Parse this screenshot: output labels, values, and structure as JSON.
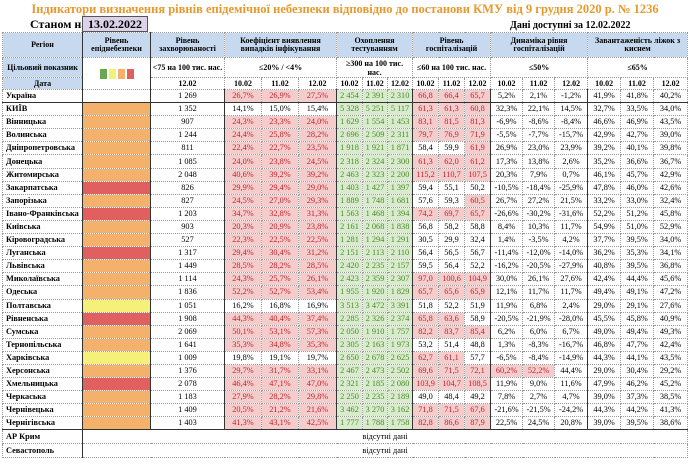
{
  "title": "Індикатори визначення рівнів епідемічної небезпеки відповідно до постанови КМУ від 9 грудня 2020 р. № 1236",
  "as_of_label": "Станом на",
  "as_of_date": "13.02.2022",
  "available": "Дані доступні за  12.02.2022",
  "headers": {
    "region": "Регіон",
    "level": "Рівень епіднебезпеки",
    "incidence": "Рівень захворюваності",
    "coef": "Коефіцієнт виявлення випадків інфікування",
    "tests": "Охоплення тестуванням",
    "hosp": "Рівень госпіталізацій",
    "dyn": "Динаміка рівня госпіталізацій",
    "oxy": "Завантаженість ліжок з киснем",
    "target_label": "Цільовий показник",
    "date_label": "Дата",
    "t_incidence": "<75 на 100 тис. нас.",
    "t_coef": "≤20% / <4%",
    "t_tests": "≥300 на 100 тис. нас.",
    "t_hosp": "≤60 на 100 тис. нас.",
    "t_dyn": "≤50%",
    "t_oxy": "≤65%",
    "d_inc": "12.02",
    "d1": "10.02",
    "d2": "11.02",
    "d3": "12.02"
  },
  "level_colors": {
    "green": "#6aa84f",
    "yellow": "#f4f07a",
    "orange": "#f4b16b",
    "red": "#e06060"
  },
  "legend_swatches": [
    "#6aa84f",
    "#f4f07a",
    "#f4b16b",
    "#e06060"
  ],
  "rows": [
    [
      "Україна",
      "",
      "1 269",
      [
        "26,7%",
        "26,9%",
        "27,5%"
      ],
      [
        "2 454",
        "2 391",
        "2 310"
      ],
      [
        "66,8",
        "66,4",
        "65,7"
      ],
      [
        "5,2%",
        "2,1%",
        "-1,2%"
      ],
      [
        "41,9%",
        "41,8%",
        "40,2%"
      ]
    ],
    [
      "КИЇВ",
      "orange",
      "1 352",
      [
        "14,1%",
        "15,0%",
        "15,4%"
      ],
      [
        "5 328",
        "5 251",
        "5 117"
      ],
      [
        "61,3",
        "61,3",
        "60,8"
      ],
      [
        "32,3%",
        "22,1%",
        "14,5%"
      ],
      [
        "32,7%",
        "33,5%",
        "34,0%"
      ]
    ],
    [
      "Вінницька",
      "orange",
      "907",
      [
        "24,3%",
        "23,3%",
        "24,0%"
      ],
      [
        "1 629",
        "1 554",
        "1 453"
      ],
      [
        "83,1",
        "81,5",
        "81,3"
      ],
      [
        "-6,9%",
        "-8,6%",
        "-8,4%"
      ],
      [
        "46,6%",
        "46,9%",
        "43,5%"
      ]
    ],
    [
      "Волинська",
      "orange",
      "1 244",
      [
        "24,4%",
        "25,8%",
        "28,2%"
      ],
      [
        "2 696",
        "2 509",
        "2 311"
      ],
      [
        "79,7",
        "76,9",
        "71,9"
      ],
      [
        "-5,5%",
        "-7,7%",
        "-15,7%"
      ],
      [
        "42,9%",
        "42,7%",
        "39,0%"
      ]
    ],
    [
      "Дніпропетровська",
      "orange",
      "811",
      [
        "22,4%",
        "22,7%",
        "23,5%"
      ],
      [
        "1 918",
        "1 921",
        "1 871"
      ],
      [
        "58,4",
        "59,9",
        "61,9"
      ],
      [
        "26,9%",
        "23,0%",
        "23,9%"
      ],
      [
        "39,2%",
        "40,1%",
        "39,8%"
      ]
    ],
    [
      "Донецька",
      "orange",
      "1 085",
      [
        "24,0%",
        "23,8%",
        "24,5%"
      ],
      [
        "2 318",
        "2 324",
        "2 300"
      ],
      [
        "61,3",
        "62,0",
        "61,2"
      ],
      [
        "17,3%",
        "13,8%",
        "2,6%"
      ],
      [
        "35,2%",
        "36,6%",
        "36,7%"
      ]
    ],
    [
      "Житомирська",
      "orange",
      "2 048",
      [
        "40,6%",
        "39,2%",
        "39,2%"
      ],
      [
        "2 463",
        "2 323",
        "2 200"
      ],
      [
        "115,2",
        "110,7",
        "107,5"
      ],
      [
        "20,3%",
        "7,9%",
        "0,7%"
      ],
      [
        "46,1%",
        "45,7%",
        "42,9%"
      ]
    ],
    [
      "Закарпатська",
      "red",
      "826",
      [
        "29,9%",
        "29,4%",
        "29,0%"
      ],
      [
        "1 403",
        "1 427",
        "1 397"
      ],
      [
        "59,4",
        "55,1",
        "50,2"
      ],
      [
        "-10,5%",
        "-18,4%",
        "-25,9%"
      ],
      [
        "47,8%",
        "46,0%",
        "42,6%"
      ]
    ],
    [
      "Запорізька",
      "orange",
      "827",
      [
        "24,5%",
        "27,0%",
        "29,3%"
      ],
      [
        "1 889",
        "1 748",
        "1 681"
      ],
      [
        "57,6",
        "59,3",
        "60,5"
      ],
      [
        "26,7%",
        "27,2%",
        "21,5%"
      ],
      [
        "33,2%",
        "33,0%",
        "32,4%"
      ]
    ],
    [
      "Івано-Франківська",
      "red",
      "1 203",
      [
        "34,7%",
        "32,8%",
        "31,3%"
      ],
      [
        "1 563",
        "1 468",
        "1 394"
      ],
      [
        "74,2",
        "69,7",
        "65,7"
      ],
      [
        "-26,6%",
        "-30,2%",
        "-31,6%"
      ],
      [
        "52,2%",
        "51,2%",
        "45,8%"
      ]
    ],
    [
      "Київська",
      "orange",
      "903",
      [
        "20,3%",
        "20,9%",
        "23,8%"
      ],
      [
        "2 161",
        "2 068",
        "1 838"
      ],
      [
        "56,8",
        "58,2",
        "58,8"
      ],
      [
        "8,4%",
        "10,3%",
        "11,7%"
      ],
      [
        "54,9%",
        "51,0%",
        "52,9%"
      ]
    ],
    [
      "Кіровоградська",
      "orange",
      "527",
      [
        "22,3%",
        "22,5%",
        "22,5%"
      ],
      [
        "1 281",
        "1 294",
        "1 291"
      ],
      [
        "30,5",
        "29,9",
        "32,4"
      ],
      [
        "1,4%",
        "-3,5%",
        "4,2%"
      ],
      [
        "37,7%",
        "39,5%",
        "34,0%"
      ]
    ],
    [
      "Луганська",
      "red",
      "1 317",
      [
        "29,4%",
        "30,4%",
        "31,2%"
      ],
      [
        "2 151",
        "2 113",
        "2 110"
      ],
      [
        "56,4",
        "56,5",
        "56,7"
      ],
      [
        "-11,4%",
        "-12,0%",
        "-14,0%"
      ],
      [
        "36,2%",
        "35,3%",
        "34,1%"
      ]
    ],
    [
      "Львівська",
      "orange",
      "1 449",
      [
        "28,5%",
        "28,2%",
        "28,5%"
      ],
      [
        "2 420",
        "2 235",
        "2 157"
      ],
      [
        "59,5",
        "56,4",
        "52,2"
      ],
      [
        "-16,2%",
        "-20,5%",
        "-27,9%"
      ],
      [
        "40,8%",
        "39,5%",
        "36,8%"
      ]
    ],
    [
      "Миколаївська",
      "orange",
      "1 114",
      [
        "24,3%",
        "25,7%",
        "26,1%"
      ],
      [
        "2 423",
        "2 359",
        "2 307"
      ],
      [
        "97,0",
        "100,6",
        "104,9"
      ],
      [
        "30,0%",
        "26,1%",
        "27,6%"
      ],
      [
        "42,4%",
        "44,4%",
        "45,6%"
      ]
    ],
    [
      "Одеська",
      "orange",
      "1 836",
      [
        "52,2%",
        "52,7%",
        "53,4%"
      ],
      [
        "1 955",
        "1 920",
        "1 829"
      ],
      [
        "65,7",
        "65,6",
        "65,9"
      ],
      [
        "12,1%",
        "11,7%",
        "11,7%"
      ],
      [
        "49,4%",
        "49,1%",
        "47,2%"
      ]
    ],
    [
      "Полтавська",
      "yellow",
      "1 051",
      [
        "16,2%",
        "16,8%",
        "16,9%"
      ],
      [
        "3 513",
        "3 472",
        "3 391"
      ],
      [
        "51,8",
        "52,2",
        "51,9"
      ],
      [
        "11,9%",
        "6,8%",
        "2,4%"
      ],
      [
        "29,0%",
        "29,1%",
        "27,6%"
      ]
    ],
    [
      "Рівненська",
      "red",
      "1 908",
      [
        "44,3%",
        "40,4%",
        "37,4%"
      ],
      [
        "2 285",
        "2 326",
        "2 374"
      ],
      [
        "65,8",
        "63,6",
        "58,9"
      ],
      [
        "-20,5%",
        "-21,9%",
        "-28,0%"
      ],
      [
        "45,5%",
        "45,8%",
        "40,9%"
      ]
    ],
    [
      "Сумська",
      "orange",
      "2 069",
      [
        "50,1%",
        "53,1%",
        "57,3%"
      ],
      [
        "2 050",
        "1 910",
        "1 757"
      ],
      [
        "82,2",
        "83,7",
        "85,4"
      ],
      [
        "6,2%",
        "6,0%",
        "6,7%"
      ],
      [
        "49,0%",
        "49,4%",
        "49,3%"
      ]
    ],
    [
      "Тернопільська",
      "orange",
      "1 641",
      [
        "35,3%",
        "34,8%",
        "35,3%"
      ],
      [
        "2 305",
        "2 163",
        "1 973"
      ],
      [
        "53,2",
        "51,4",
        "48,8"
      ],
      [
        "1,3%",
        "-8,3%",
        "-16,7%"
      ],
      [
        "46,8%",
        "47,7%",
        "42,4%"
      ]
    ],
    [
      "Харківська",
      "yellow",
      "1 009",
      [
        "19,8%",
        "19,1%",
        "19,7%"
      ],
      [
        "2 650",
        "2 678",
        "2 625"
      ],
      [
        "62,7",
        "61,1",
        "57,7"
      ],
      [
        "-6,5%",
        "-8,4%",
        "-14,9%"
      ],
      [
        "44,3%",
        "44,1%",
        "43,5%"
      ]
    ],
    [
      "Херсонська",
      "orange",
      "1 376",
      [
        "29,7%",
        "31,7%",
        "33,1%"
      ],
      [
        "2 467",
        "2 473",
        "2 502"
      ],
      [
        "69,6",
        "71,5",
        "72,1"
      ],
      [
        "60,2%",
        "52,2%",
        "44,4%"
      ],
      [
        "29,0%",
        "30,4%",
        "29,2%"
      ]
    ],
    [
      "Хмельницька",
      "red",
      "2 078",
      [
        "46,4%",
        "47,1%",
        "47,0%"
      ],
      [
        "2 321",
        "2 185",
        "2 080"
      ],
      [
        "103,9",
        "104,7",
        "108,5"
      ],
      [
        "11,9%",
        "9,0%",
        "11,6%"
      ],
      [
        "47,9%",
        "46,2%",
        "45,2%"
      ]
    ],
    [
      "Черкаська",
      "orange",
      "1 183",
      [
        "27,9%",
        "28,2%",
        "29,8%"
      ],
      [
        "2 250",
        "2 235",
        "2 189"
      ],
      [
        "49,0",
        "48,4",
        "49,2"
      ],
      [
        "7,8%",
        "2,7%",
        "4,7%"
      ],
      [
        "39,0%",
        "37,3%",
        "38,5%"
      ]
    ],
    [
      "Чернівецька",
      "orange",
      "1 409",
      [
        "20,5%",
        "21,2%",
        "21,6%"
      ],
      [
        "3 462",
        "3 270",
        "3 162"
      ],
      [
        "71,8",
        "71,5",
        "67,6"
      ],
      [
        "-21,6%",
        "-21,5%",
        "-24,2%"
      ],
      [
        "44,3%",
        "44,2%",
        "41,3%"
      ]
    ],
    [
      "Чернігівська",
      "orange",
      "1 403",
      [
        "41,3%",
        "43,1%",
        "42,5%"
      ],
      [
        "1 777",
        "1 788",
        "1 758"
      ],
      [
        "82,8",
        "86,6",
        "87,9"
      ],
      [
        "22,5%",
        "24,5%",
        "20,8%"
      ],
      [
        "39,0%",
        "39,5%",
        "38,6%"
      ]
    ]
  ],
  "missing_rows": [
    {
      "name": "АР Крим",
      "text": "відсутні дані"
    },
    {
      "name": "Севастополь",
      "text": "відсутні дані"
    }
  ]
}
